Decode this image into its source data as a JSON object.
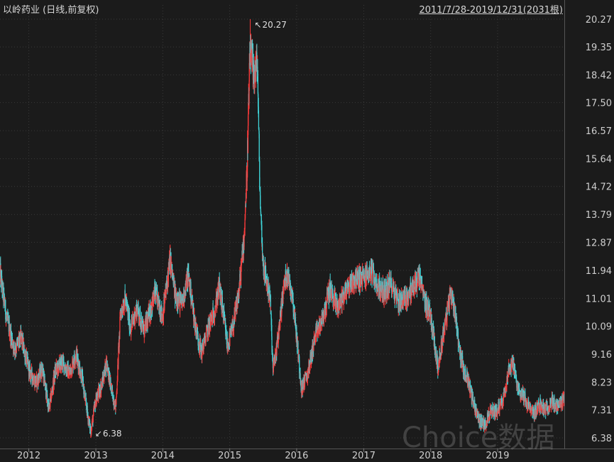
{
  "header": {
    "title": "以岭药业 (日线,前复权)",
    "range": "2011/7/28-2019/12/31(2031根)"
  },
  "watermark": "Choice数据",
  "colors": {
    "up": "#ff3b3b",
    "down": "#40d8dc",
    "grid": "#3a3a3a",
    "text": "#cfcfcf",
    "background": "#1b1b1b"
  },
  "chart_data": {
    "type": "candlestick",
    "title": "以岭药业 (日线,前复权)",
    "subtitle": "2011/7/28-2019/12/31(2031根)",
    "ylim": [
      6.38,
      20.27
    ],
    "y_ticks": [
      "20.27",
      "19.35",
      "18.42",
      "17.50",
      "16.57",
      "15.64",
      "14.72",
      "13.79",
      "12.87",
      "11.94",
      "11.01",
      "10.09",
      "9.16",
      "8.23",
      "7.31",
      "6.38"
    ],
    "x_ticks": [
      "2012",
      "2013",
      "2014",
      "2015",
      "2016",
      "2017",
      "2018",
      "2019"
    ],
    "x_tick_dates": [
      "2012-01-01",
      "2013-01-01",
      "2014-01-01",
      "2015-01-01",
      "2016-01-01",
      "2017-01-01",
      "2018-01-01",
      "2019-01-01"
    ],
    "x_range": [
      "2011-07-28",
      "2019-12-31"
    ],
    "grid": true,
    "annotations": [
      {
        "label": "20.27",
        "date": "2015-04-23",
        "value": 20.27,
        "type": "max"
      },
      {
        "label": "6.38",
        "date": "2012-12-04",
        "value": 6.38,
        "type": "min"
      }
    ],
    "series": [
      {
        "values": [
          [
            "2011-07-28",
            11.9
          ],
          [
            "2011-09-01",
            10.4
          ],
          [
            "2011-10-15",
            9.3
          ],
          [
            "2011-11-20",
            9.7
          ],
          [
            "2012-01-05",
            8.6
          ],
          [
            "2012-02-10",
            8.2
          ],
          [
            "2012-03-15",
            8.7
          ],
          [
            "2012-04-20",
            7.3
          ],
          [
            "2012-05-25",
            8.6
          ],
          [
            "2012-07-01",
            8.9
          ],
          [
            "2012-08-10",
            8.5
          ],
          [
            "2012-09-15",
            9.2
          ],
          [
            "2012-10-20",
            8.3
          ],
          [
            "2012-11-10",
            7.4
          ],
          [
            "2012-12-04",
            6.6
          ],
          [
            "2012-12-31",
            7.6
          ],
          [
            "2013-02-05",
            8.2
          ],
          [
            "2013-03-01",
            8.9
          ],
          [
            "2013-04-01",
            7.8
          ],
          [
            "2013-04-20",
            7.4
          ],
          [
            "2013-05-15",
            10.5
          ],
          [
            "2013-06-10",
            11.0
          ],
          [
            "2013-07-10",
            10.0
          ],
          [
            "2013-08-15",
            10.7
          ],
          [
            "2013-09-20",
            9.9
          ],
          [
            "2013-10-25",
            10.6
          ],
          [
            "2013-11-20",
            11.2
          ],
          [
            "2013-12-31",
            10.4
          ],
          [
            "2014-02-10",
            12.3
          ],
          [
            "2014-03-10",
            11.1
          ],
          [
            "2014-04-15",
            10.8
          ],
          [
            "2014-05-20",
            11.8
          ],
          [
            "2014-06-25",
            10.2
          ],
          [
            "2014-07-30",
            9.2
          ],
          [
            "2014-09-05",
            10.0
          ],
          [
            "2014-10-10",
            10.6
          ],
          [
            "2014-11-05",
            11.4
          ],
          [
            "2014-11-25",
            10.6
          ],
          [
            "2014-12-20",
            9.4
          ],
          [
            "2015-01-20",
            10.1
          ],
          [
            "2015-02-20",
            11.2
          ],
          [
            "2015-03-20",
            13.0
          ],
          [
            "2015-04-05",
            15.2
          ],
          [
            "2015-04-15",
            17.6
          ],
          [
            "2015-04-23",
            19.3
          ],
          [
            "2015-05-10",
            18.4
          ],
          [
            "2015-06-01",
            18.8
          ],
          [
            "2015-06-15",
            14.5
          ],
          [
            "2015-07-01",
            12.2
          ],
          [
            "2015-07-20",
            11.6
          ],
          [
            "2015-08-10",
            11.0
          ],
          [
            "2015-08-25",
            8.6
          ],
          [
            "2015-09-20",
            9.6
          ],
          [
            "2015-10-20",
            11.3
          ],
          [
            "2015-11-10",
            11.9
          ],
          [
            "2015-12-10",
            11.1
          ],
          [
            "2016-01-05",
            9.5
          ],
          [
            "2016-01-28",
            8.0
          ],
          [
            "2016-03-01",
            8.5
          ],
          [
            "2016-04-10",
            9.7
          ],
          [
            "2016-05-20",
            10.3
          ],
          [
            "2016-07-01",
            11.3
          ],
          [
            "2016-08-10",
            10.7
          ],
          [
            "2016-09-20",
            11.2
          ],
          [
            "2016-11-01",
            11.6
          ],
          [
            "2016-12-31",
            11.7
          ],
          [
            "2017-02-10",
            11.9
          ],
          [
            "2017-03-20",
            11.4
          ],
          [
            "2017-04-20",
            11.2
          ],
          [
            "2017-06-01",
            11.5
          ],
          [
            "2017-07-10",
            10.9
          ],
          [
            "2017-08-15",
            11.0
          ],
          [
            "2017-09-20",
            11.3
          ],
          [
            "2017-11-01",
            11.7
          ],
          [
            "2017-12-01",
            10.9
          ],
          [
            "2017-12-31",
            10.5
          ],
          [
            "2018-01-25",
            9.4
          ],
          [
            "2018-02-10",
            8.7
          ],
          [
            "2018-03-10",
            9.8
          ],
          [
            "2018-04-01",
            10.5
          ],
          [
            "2018-04-20",
            11.2
          ],
          [
            "2018-05-15",
            10.6
          ],
          [
            "2018-06-05",
            9.4
          ],
          [
            "2018-07-01",
            8.6
          ],
          [
            "2018-07-25",
            8.3
          ],
          [
            "2018-08-20",
            7.6
          ],
          [
            "2018-09-20",
            7.0
          ],
          [
            "2018-10-20",
            6.8
          ],
          [
            "2018-11-20",
            7.2
          ],
          [
            "2018-12-31",
            7.3
          ],
          [
            "2019-02-01",
            7.7
          ],
          [
            "2019-03-01",
            8.6
          ],
          [
            "2019-03-25",
            8.9
          ],
          [
            "2019-04-20",
            8.0
          ],
          [
            "2019-05-20",
            7.8
          ],
          [
            "2019-06-20",
            7.4
          ],
          [
            "2019-07-20",
            7.2
          ],
          [
            "2019-08-20",
            7.5
          ],
          [
            "2019-09-20",
            7.3
          ],
          [
            "2019-10-20",
            7.6
          ],
          [
            "2019-11-20",
            7.4
          ],
          [
            "2019-12-20",
            7.5
          ],
          [
            "2019-12-31",
            7.7
          ]
        ]
      }
    ]
  }
}
